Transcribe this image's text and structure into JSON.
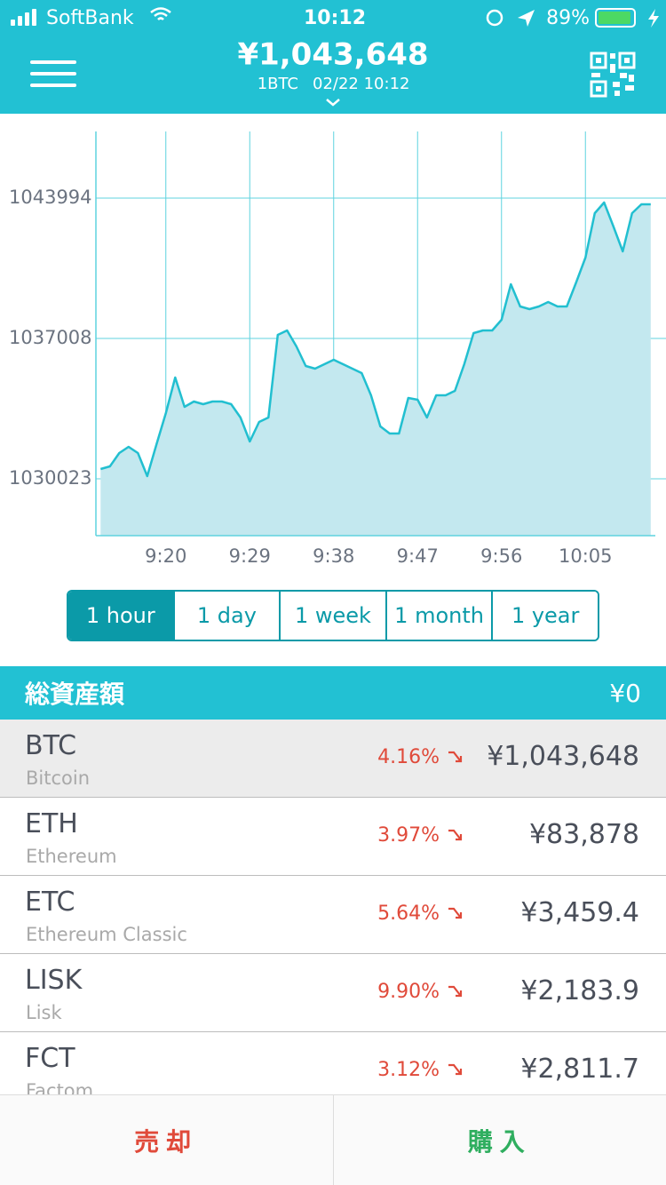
{
  "status_bar": {
    "carrier": "SoftBank",
    "time": "10:12",
    "battery": "89%"
  },
  "header": {
    "price": "¥1,043,648",
    "pair": "1BTC",
    "timestamp": "02/22 10:12"
  },
  "chart_data": {
    "type": "line",
    "color": "#22bfd0",
    "fill": "#c3e8ef",
    "x": [
      553,
      554,
      555,
      556,
      557,
      558,
      559,
      560,
      561,
      562,
      563,
      564,
      565,
      566,
      567,
      568,
      569,
      570,
      571,
      572,
      573,
      574,
      575,
      576,
      577,
      578,
      579,
      580,
      581,
      582,
      583,
      584,
      585,
      586,
      587,
      588,
      589,
      590,
      591,
      592,
      593,
      594,
      595,
      596,
      597,
      598,
      599,
      600,
      601,
      602,
      603,
      604,
      605,
      606,
      607,
      608,
      609,
      610,
      611,
      612
    ],
    "values": [
      1030509,
      1030642,
      1031305,
      1031615,
      1031305,
      1030156,
      1031747,
      1033295,
      1035063,
      1033604,
      1033869,
      1033737,
      1033869,
      1033869,
      1033737,
      1033073,
      1031880,
      1032852,
      1033073,
      1037185,
      1037406,
      1036610,
      1035638,
      1035505,
      1035726,
      1035947,
      1035726,
      1035505,
      1035284,
      1034179,
      1032631,
      1032278,
      1032278,
      1034046,
      1033958,
      1033073,
      1034179,
      1034179,
      1034400,
      1035726,
      1037273,
      1037406,
      1037406,
      1037937,
      1039705,
      1038600,
      1038467,
      1038600,
      1038821,
      1038600,
      1038600,
      1039793,
      1041031,
      1043242,
      1043772,
      1042579,
      1041341,
      1043242,
      1043684,
      1043684
    ],
    "xlim": [
      552.5,
      612.5
    ],
    "ylim": [
      1027194,
      1047309
    ],
    "xticks": [
      {
        "value": 560,
        "label": "9:20"
      },
      {
        "value": 569,
        "label": "9:29"
      },
      {
        "value": 578,
        "label": "9:38"
      },
      {
        "value": 587,
        "label": "9:47"
      },
      {
        "value": 596,
        "label": "9:56"
      },
      {
        "value": 605,
        "label": "10:05"
      }
    ],
    "yticks": [
      1030023,
      1037008,
      1043994
    ],
    "grid": true
  },
  "tabs": [
    "1 hour",
    "1 day",
    "1 week",
    "1 month",
    "1 year"
  ],
  "active_tab": 0,
  "summary": {
    "title": "総資産額",
    "total": "¥0"
  },
  "assets": [
    {
      "symbol": "BTC",
      "name": "Bitcoin",
      "change": "4.16%",
      "price": "¥1,043,648"
    },
    {
      "symbol": "ETH",
      "name": "Ethereum",
      "change": "3.97%",
      "price": "¥83,878"
    },
    {
      "symbol": "ETC",
      "name": "Ethereum Classic",
      "change": "5.64%",
      "price": "¥3,459.4"
    },
    {
      "symbol": "LISK",
      "name": "Lisk",
      "change": "9.90%",
      "price": "¥2,183.9"
    },
    {
      "symbol": "FCT",
      "name": "Factom",
      "change": "3.12%",
      "price": "¥2,811.7"
    }
  ],
  "actions": {
    "sell": "売却",
    "buy": "購入"
  }
}
